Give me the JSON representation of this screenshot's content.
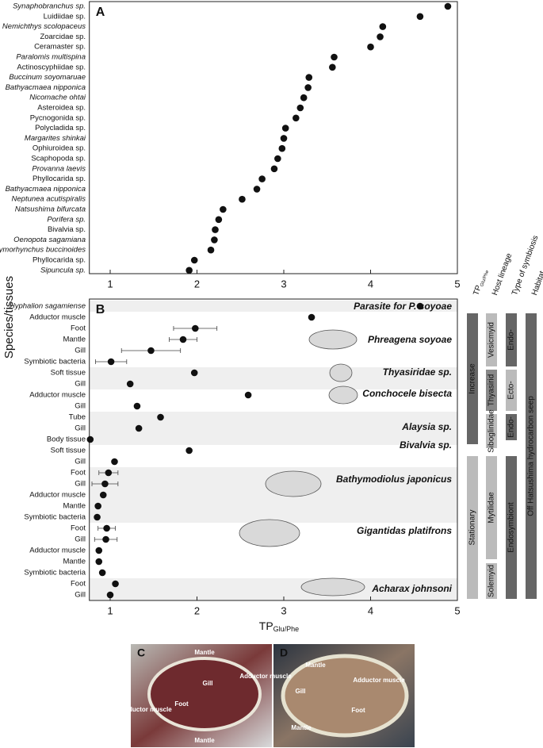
{
  "ylabel": "Species/tissues",
  "chart_data": [
    {
      "type": "scatter",
      "panel": "A",
      "categories": [
        "Synaphobranchus sp.",
        "Luidiidae sp.",
        "Nemichthys scolopaceus",
        "Zoarcidae sp.",
        "Ceramaster sp.",
        "Paralomis multispina",
        "Actinoscyphiidae sp.",
        "Buccinum soyomaruae",
        "Bathyacmaea nipponica",
        "Nicomache ohtai",
        "Asteroidea sp.",
        "Pycnogonida sp.",
        "Polycladida sp.",
        "Margarites shinkai",
        "Ophiuroidea sp.",
        "Scaphopoda sp.",
        "Provanna laevis",
        "Phyllocarida sp.",
        "Bathyacmaea nipponica",
        "Neptunea acutispiralis",
        "Natsushima bifurcata",
        "Porifera sp.",
        "Bivalvia sp.",
        "Oenopota sagamiana",
        "Phymorhynchus buccinoides",
        "Phyllocarida sp.",
        "Sipuncula sp."
      ],
      "values": [
        4.89,
        4.57,
        4.14,
        4.11,
        4.0,
        3.58,
        3.56,
        3.29,
        3.28,
        3.23,
        3.19,
        3.14,
        3.02,
        3.0,
        2.98,
        2.93,
        2.89,
        2.75,
        2.69,
        2.52,
        2.3,
        2.25,
        2.21,
        2.2,
        2.16,
        1.97,
        1.91
      ],
      "color": "#111111",
      "xlim": [
        0.76,
        5
      ],
      "xticks": [
        1,
        2,
        3,
        4,
        5
      ]
    },
    {
      "type": "scatter",
      "panel": "B",
      "categories": [
        "Hyphalion sagamiense",
        "Adductor muscle",
        "Foot",
        "Mantle",
        "Gill",
        "Symbiotic bacteria",
        "Soft tissue",
        "Gill",
        "Adductor muscle",
        "Gill",
        "Tube",
        "Gill",
        "Body tissue",
        "Soft tissue",
        "Gill",
        "Foot",
        "Gill",
        "Adductor muscle",
        "Mantle",
        "Symbiotic bacteria",
        "Foot",
        "Gill",
        "Adductor muscle",
        "Mantle",
        "Symbiotic bacteria",
        "Foot",
        "Gill"
      ],
      "values": [
        4.57,
        3.32,
        1.98,
        1.84,
        1.47,
        1.01,
        1.97,
        1.23,
        2.59,
        1.31,
        1.58,
        1.33,
        0.77,
        1.91,
        1.05,
        0.98,
        0.94,
        0.92,
        0.86,
        0.85,
        0.96,
        0.95,
        0.87,
        0.87,
        0.91,
        1.06,
        1.0
      ],
      "errors": [
        null,
        null,
        0.25,
        0.16,
        0.34,
        0.18,
        null,
        null,
        null,
        null,
        null,
        null,
        null,
        null,
        null,
        0.11,
        0.15,
        null,
        null,
        null,
        0.1,
        0.13,
        null,
        null,
        null,
        null,
        null
      ],
      "color": "#111111",
      "xlim": [
        0.76,
        5
      ],
      "xticks": [
        1,
        2,
        3,
        4,
        5
      ],
      "xlabel": "TP",
      "xlabel_sub": "Glu/Phe",
      "groups": [
        "Parasite for P. soyoae",
        "Phreagena soyoae",
        "Thyasiridae sp.",
        "Conchocele bisecta",
        "Alaysia sp.",
        "Bivalvia sp.",
        "Bathymodiolus japonicus",
        "Gigantidas platifrons",
        "Acharax johnsoni"
      ],
      "annotation_columns": [
        {
          "labels": [
            "Increase",
            "Stationary"
          ]
        },
        {
          "heading": "Host lineage",
          "labels": [
            "Vesicmyid",
            "Thyasirid",
            "Siboglinidae",
            "Mytilidae",
            "Solemyid"
          ]
        },
        {
          "heading": "Type of symbiosis",
          "labels": [
            "Endo-",
            "Ecto-",
            "Endo-",
            "Endosymbiont"
          ]
        },
        {
          "heading": "Habitat",
          "labels": [
            "Off Hatsushima hydrocarbon seep"
          ]
        }
      ]
    }
  ],
  "photos": [
    {
      "panel": "C",
      "labels": [
        "Mantle",
        "Adductor muscle",
        "Gill",
        "Foot",
        "Adductor muscle",
        "Mantle"
      ]
    },
    {
      "panel": "D",
      "labels": [
        "Mantle",
        "Adductor muscle",
        "Gill",
        "Foot",
        "Mantle"
      ]
    }
  ]
}
